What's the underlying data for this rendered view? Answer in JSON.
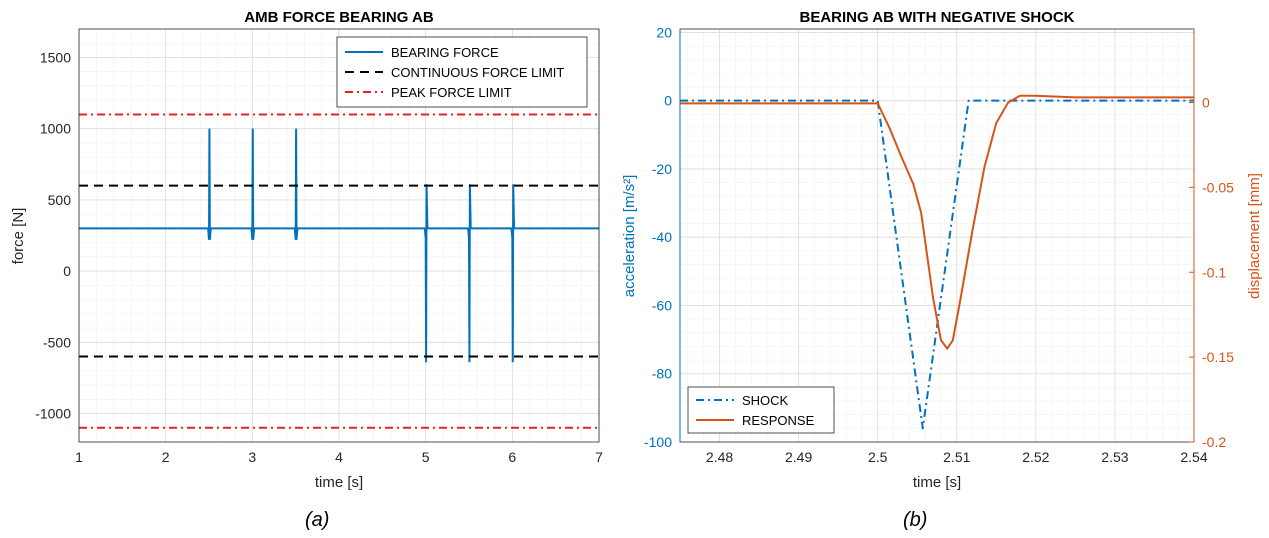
{
  "chart_data": [
    {
      "type": "line",
      "title": "AMB FORCE BEARING AB",
      "xlabel": "time [s]",
      "ylabel": "force [N]",
      "xlim": [
        1,
        7
      ],
      "ylim": [
        -1200,
        1700
      ],
      "xticks": [
        1,
        2,
        3,
        4,
        5,
        6,
        7
      ],
      "yticks": [
        -1000,
        -500,
        0,
        500,
        1000,
        1500
      ],
      "grid": true,
      "minor_grid": true,
      "legend_position": "top-right",
      "caption": "(a)",
      "series": [
        {
          "name": "BEARING FORCE",
          "color": "#0072BD",
          "style": "solid",
          "x": [
            1,
            2.49,
            2.5,
            2.505,
            2.51,
            2.52,
            2.99,
            3.0,
            3.005,
            3.01,
            3.02,
            3.49,
            3.5,
            3.505,
            3.51,
            3.52,
            4.99,
            5.0,
            5.005,
            5.01,
            5.02,
            5.49,
            5.5,
            5.505,
            5.51,
            5.52,
            5.99,
            6.0,
            6.005,
            6.01,
            6.02,
            7
          ],
          "y": [
            300,
            300,
            220,
            1000,
            220,
            300,
            300,
            220,
            1000,
            220,
            300,
            300,
            220,
            1000,
            220,
            300,
            300,
            230,
            -640,
            610,
            300,
            300,
            230,
            -640,
            610,
            300,
            300,
            230,
            -640,
            610,
            300,
            300
          ]
        },
        {
          "name": "CONTINUOUS FORCE LIMIT",
          "color": "#000000",
          "style": "dashed",
          "lines": [
            600,
            -600
          ]
        },
        {
          "name": "PEAK FORCE LIMIT",
          "color": "#E8202A",
          "style": "dashdot",
          "lines": [
            1100,
            -1100
          ]
        }
      ]
    },
    {
      "type": "line",
      "title": "BEARING AB WITH NEGATIVE SHOCK",
      "xlabel": "time [s]",
      "ylabel": "acceleration [m/s²]",
      "ylabel_right": "displacement [mm]",
      "xlim": [
        2.475,
        2.54
      ],
      "ylim": [
        -100,
        21
      ],
      "ylim_right": [
        -0.2,
        0.0433
      ],
      "xticks": [
        2.48,
        2.49,
        2.5,
        2.51,
        2.52,
        2.53,
        2.54
      ],
      "yticks": [
        -100,
        -80,
        -60,
        -40,
        -20,
        0,
        20
      ],
      "yticks_right": [
        -0.2,
        -0.15,
        -0.1,
        -0.05,
        0
      ],
      "grid": true,
      "minor_grid": true,
      "legend_position": "bottom-left",
      "caption": "(b)",
      "series": [
        {
          "name": "SHOCK",
          "axis": "left",
          "color": "#0072BD",
          "style": "dashdot",
          "x": [
            2.475,
            2.5,
            2.5057,
            2.5115,
            2.54
          ],
          "y": [
            0,
            0,
            -96,
            0,
            0
          ]
        },
        {
          "name": "RESPONSE",
          "axis": "right",
          "color": "#D95319",
          "style": "solid",
          "x": [
            2.475,
            2.5,
            2.5015,
            2.503,
            2.5045,
            2.5055,
            2.507,
            2.508,
            2.5088,
            2.5095,
            2.5105,
            2.512,
            2.5135,
            2.515,
            2.5165,
            2.518,
            2.52,
            2.525,
            2.54
          ],
          "y": [
            -0.0005,
            -0.0005,
            -0.015,
            -0.032,
            -0.048,
            -0.065,
            -0.115,
            -0.14,
            -0.145,
            -0.14,
            -0.115,
            -0.075,
            -0.038,
            -0.012,
            0.0,
            0.004,
            0.004,
            0.003,
            0.003
          ]
        }
      ]
    }
  ]
}
